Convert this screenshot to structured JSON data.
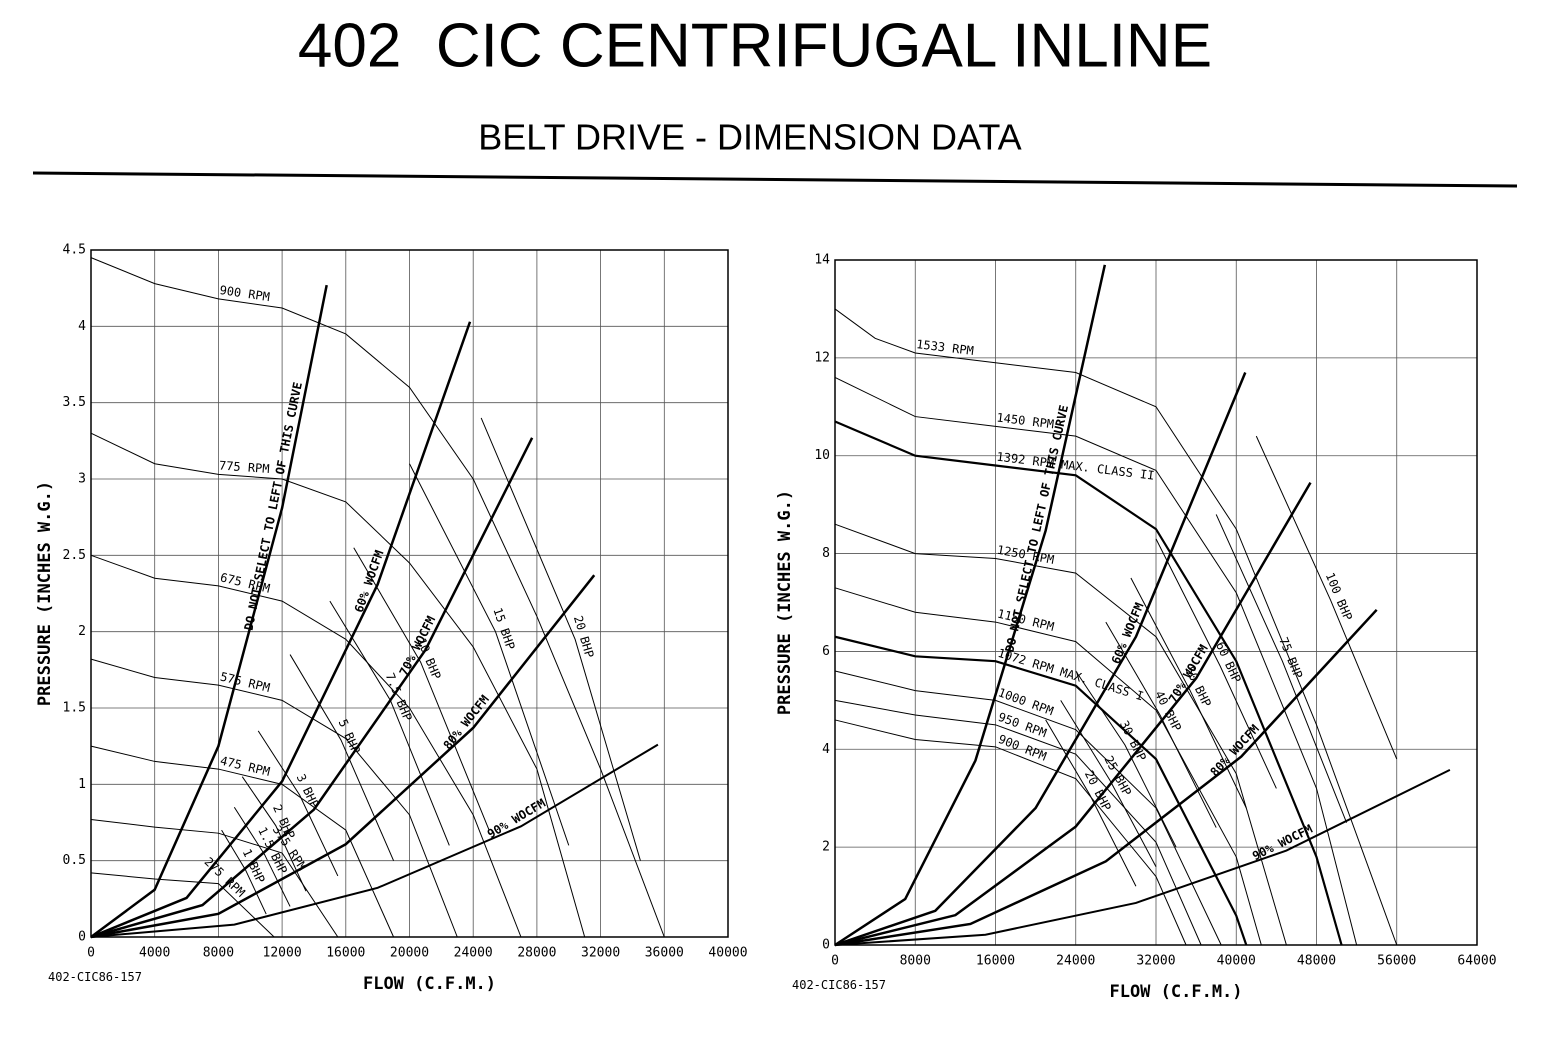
{
  "header": {
    "title": "402  CIC CENTRIFUGAL INLINE",
    "subtitle": "BELT DRIVE - DIMENSION DATA"
  },
  "chart_data": [
    {
      "type": "line",
      "x_label": "FLOW (C.F.M.)",
      "y_label": "PRESSURE (INCHES W.G.)",
      "code": "402-CIC86-157",
      "color": "#000000",
      "grid": true,
      "xlim": [
        0,
        40000
      ],
      "ylim": [
        0,
        4.5
      ],
      "xticks": [
        0,
        4000,
        8000,
        12000,
        16000,
        20000,
        24000,
        28000,
        32000,
        36000,
        40000
      ],
      "yticks": [
        0,
        0.5,
        1,
        1.5,
        2,
        2.5,
        3,
        3.5,
        4,
        4.5
      ],
      "series": [
        {
          "name": "900 RPM",
          "width": 1,
          "x": [
            0,
            4000,
            8000,
            12000,
            16000,
            20000,
            24000,
            28000,
            32000,
            36000
          ],
          "values": [
            4.45,
            4.28,
            4.18,
            4.12,
            3.95,
            3.6,
            3.0,
            2.1,
            1.1,
            0
          ]
        },
        {
          "name": "775 RPM",
          "width": 1,
          "x": [
            0,
            4000,
            8000,
            12000,
            16000,
            20000,
            24000,
            28000,
            31000
          ],
          "values": [
            3.3,
            3.1,
            3.03,
            3.0,
            2.85,
            2.45,
            1.9,
            1.1,
            0
          ]
        },
        {
          "name": "675 RPM",
          "width": 1,
          "x": [
            0,
            4000,
            8000,
            12000,
            16000,
            20000,
            24000,
            27000
          ],
          "values": [
            2.5,
            2.35,
            2.3,
            2.2,
            1.95,
            1.5,
            0.8,
            0
          ]
        },
        {
          "name": "575 RPM",
          "width": 1,
          "x": [
            0,
            4000,
            8000,
            12000,
            16000,
            20000,
            23000
          ],
          "values": [
            1.82,
            1.7,
            1.65,
            1.55,
            1.3,
            0.8,
            0
          ]
        },
        {
          "name": "475 RPM",
          "width": 1,
          "x": [
            0,
            4000,
            8000,
            12000,
            16000,
            19000
          ],
          "values": [
            1.25,
            1.15,
            1.1,
            1.0,
            0.7,
            0
          ]
        },
        {
          "name": "375 RPM",
          "width": 1,
          "x": [
            0,
            4000,
            8000,
            12000,
            15500
          ],
          "values": [
            0.77,
            0.72,
            0.68,
            0.55,
            0
          ]
        },
        {
          "name": "275 RPM",
          "width": 1,
          "x": [
            0,
            4000,
            8000,
            11500
          ],
          "values": [
            0.42,
            0.38,
            0.35,
            0
          ]
        },
        {
          "name": "DO NOT SELECT TO LEFT OF THIS CURVE",
          "width": 2.5,
          "x": [
            0,
            4000,
            8000,
            12000,
            14800
          ],
          "values": [
            0,
            0.31,
            1.25,
            2.81,
            4.27
          ]
        },
        {
          "name": "60% WOCFM",
          "width": 2.5,
          "x": [
            0,
            6000,
            12000,
            18000,
            23800
          ],
          "values": [
            0,
            0.256,
            1.02,
            2.31,
            4.03
          ]
        },
        {
          "name": "70% WOCFM",
          "width": 2.5,
          "x": [
            0,
            7000,
            14000,
            21000,
            27700
          ],
          "values": [
            0,
            0.209,
            0.835,
            1.88,
            3.27
          ]
        },
        {
          "name": "80% WOCFM",
          "width": 2.5,
          "x": [
            0,
            8000,
            16000,
            24000,
            31600
          ],
          "values": [
            0,
            0.152,
            0.608,
            1.37,
            2.37
          ]
        },
        {
          "name": "90% WOCFM",
          "width": 2,
          "x": [
            0,
            9000,
            18000,
            27000,
            35600
          ],
          "values": [
            0,
            0.081,
            0.322,
            0.725,
            1.26
          ]
        },
        {
          "name": "1 BHP",
          "width": 1,
          "x": [
            8200,
            9700,
            11000
          ],
          "values": [
            0.7,
            0.44,
            0.15
          ]
        },
        {
          "name": "1.5 BHP",
          "width": 1,
          "x": [
            9000,
            10900,
            12500
          ],
          "values": [
            0.85,
            0.54,
            0.2
          ]
        },
        {
          "name": "2 BHP",
          "width": 1,
          "x": [
            9500,
            11600,
            13500
          ],
          "values": [
            1.05,
            0.73,
            0.3
          ]
        },
        {
          "name": "3 BHP",
          "width": 1,
          "x": [
            10500,
            13100,
            15500
          ],
          "values": [
            1.35,
            0.93,
            0.4
          ]
        },
        {
          "name": "5 BHP",
          "width": 1,
          "x": [
            12500,
            15700,
            19000
          ],
          "values": [
            1.85,
            1.29,
            0.5
          ]
        },
        {
          "name": "7.5 BHP",
          "width": 1,
          "x": [
            15000,
            18800,
            22500
          ],
          "values": [
            2.2,
            1.55,
            0.6
          ]
        },
        {
          "name": "10 BHP",
          "width": 1,
          "x": [
            16500,
            20700,
            25000
          ],
          "values": [
            2.55,
            1.8,
            0.7
          ]
        },
        {
          "name": "15 BHP",
          "width": 1,
          "x": [
            20000,
            25400,
            30000
          ],
          "values": [
            3.1,
            2.0,
            0.6
          ]
        },
        {
          "name": "20 BHP",
          "width": 1,
          "x": [
            24500,
            30400,
            34500
          ],
          "values": [
            3.4,
            1.95,
            0.5
          ]
        }
      ]
    },
    {
      "type": "line",
      "x_label": "FLOW (C.F.M.)",
      "y_label": "PRESSURE (INCHES W.G.)",
      "code": "402-CIC86-157",
      "color": "#000000",
      "grid": true,
      "xlim": [
        0,
        64000
      ],
      "ylim": [
        0,
        14
      ],
      "xticks": [
        0,
        8000,
        16000,
        24000,
        32000,
        40000,
        48000,
        56000,
        64000
      ],
      "yticks": [
        0,
        2,
        4,
        6,
        8,
        10,
        12,
        14
      ],
      "series": [
        {
          "name": "1533 RPM",
          "width": 1,
          "x": [
            0,
            4000,
            8000,
            16000,
            24000,
            32000,
            40000,
            48000,
            56000
          ],
          "values": [
            13,
            12.4,
            12.1,
            11.9,
            11.7,
            11.0,
            8.5,
            4.5,
            0
          ]
        },
        {
          "name": "1450 RPM",
          "width": 1,
          "x": [
            0,
            8000,
            16000,
            24000,
            32000,
            40000,
            48000,
            52000
          ],
          "values": [
            11.6,
            10.8,
            10.6,
            10.4,
            9.7,
            7.2,
            3.2,
            0
          ]
        },
        {
          "name": "1392 RPM MAX. CLASS II",
          "width": 2.2,
          "x": [
            0,
            8000,
            16000,
            24000,
            32000,
            40000,
            48000,
            50500
          ],
          "values": [
            10.7,
            10.0,
            9.8,
            9.6,
            8.5,
            5.8,
            1.8,
            0
          ]
        },
        {
          "name": "1250 RPM",
          "width": 1,
          "x": [
            0,
            8000,
            16000,
            24000,
            32000,
            40000,
            45000
          ],
          "values": [
            8.6,
            8.0,
            7.9,
            7.6,
            6.3,
            3.5,
            0
          ]
        },
        {
          "name": "1150 RPM",
          "width": 1,
          "x": [
            0,
            8000,
            16000,
            24000,
            32000,
            40000,
            42500
          ],
          "values": [
            7.3,
            6.8,
            6.6,
            6.2,
            4.8,
            1.8,
            0
          ]
        },
        {
          "name": "1072 RPM MAX. CLASS I",
          "width": 2.2,
          "x": [
            0,
            8000,
            16000,
            24000,
            32000,
            40000,
            41000
          ],
          "values": [
            6.3,
            5.9,
            5.8,
            5.3,
            3.8,
            0.6,
            0
          ]
        },
        {
          "name": "1000 RPM",
          "width": 1,
          "x": [
            0,
            8000,
            16000,
            24000,
            32000,
            38500
          ],
          "values": [
            5.6,
            5.2,
            5.0,
            4.4,
            2.8,
            0
          ]
        },
        {
          "name": "950 RPM",
          "width": 1,
          "x": [
            0,
            8000,
            16000,
            24000,
            32000,
            36500
          ],
          "values": [
            5.0,
            4.7,
            4.5,
            3.9,
            2.1,
            0
          ]
        },
        {
          "name": "900 RPM",
          "width": 1,
          "x": [
            0,
            8000,
            16000,
            24000,
            32000,
            35000
          ],
          "values": [
            4.6,
            4.2,
            4.05,
            3.4,
            1.4,
            0
          ]
        },
        {
          "name": "DO NOT SELECT TO LEFT OF THIS CURVE",
          "width": 2.5,
          "x": [
            0,
            7000,
            14000,
            21000,
            26900
          ],
          "values": [
            0,
            0.94,
            3.77,
            8.47,
            13.9
          ]
        },
        {
          "name": "60% WOCFM",
          "width": 2.5,
          "x": [
            0,
            10000,
            20000,
            30000,
            40900
          ],
          "values": [
            0,
            0.7,
            2.8,
            6.3,
            11.7
          ]
        },
        {
          "name": "70% WOCFM",
          "width": 2.5,
          "x": [
            0,
            12000,
            24000,
            36000,
            47400
          ],
          "values": [
            0,
            0.61,
            2.42,
            5.45,
            9.45
          ]
        },
        {
          "name": "80% WOCFM",
          "width": 2.5,
          "x": [
            0,
            13500,
            27000,
            40500,
            54000
          ],
          "values": [
            0,
            0.43,
            1.71,
            3.85,
            6.85
          ]
        },
        {
          "name": "90% WOCFM",
          "width": 2,
          "x": [
            0,
            15000,
            30000,
            45000,
            61300
          ],
          "values": [
            0,
            0.21,
            0.86,
            1.93,
            3.58
          ]
        },
        {
          "name": "20 BHP",
          "width": 1,
          "x": [
            21000,
            25400,
            30000
          ],
          "values": [
            4.6,
            3.07,
            1.2
          ]
        },
        {
          "name": "25 BHP",
          "width": 1,
          "x": [
            22500,
            27400,
            32000
          ],
          "values": [
            5.0,
            3.37,
            1.6
          ]
        },
        {
          "name": "30 BHP",
          "width": 1,
          "x": [
            24000,
            28900,
            34000
          ],
          "values": [
            5.6,
            4.09,
            2.0
          ]
        },
        {
          "name": "40 BHP",
          "width": 1,
          "x": [
            27000,
            32400,
            38000
          ],
          "values": [
            6.6,
            4.7,
            2.4
          ]
        },
        {
          "name": "50 BHP",
          "width": 1,
          "x": [
            29500,
            35400,
            41000
          ],
          "values": [
            7.5,
            5.2,
            2.8
          ]
        },
        {
          "name": "60 BHP",
          "width": 1,
          "x": [
            32000,
            38400,
            44000
          ],
          "values": [
            8.3,
            5.7,
            3.2
          ]
        },
        {
          "name": "75 BHP",
          "width": 1,
          "x": [
            38000,
            44600,
            51000
          ],
          "values": [
            8.8,
            5.8,
            2.5
          ]
        },
        {
          "name": "100 BHP",
          "width": 1,
          "x": [
            42000,
            49400,
            56000
          ],
          "values": [
            10.4,
            7.05,
            3.8
          ]
        }
      ]
    }
  ]
}
